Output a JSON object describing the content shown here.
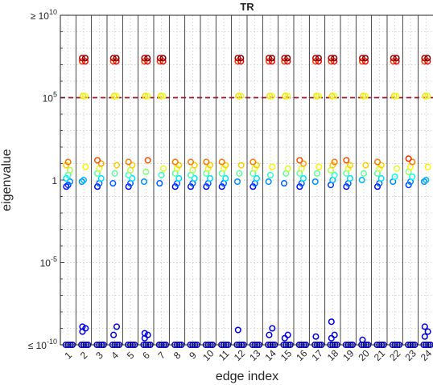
{
  "chart_data": {
    "type": "scatter",
    "title": "TR",
    "xlabel": "edge index",
    "ylabel": "eigenvalue",
    "y_scale": "log10",
    "ylim_log10": [
      -10,
      10
    ],
    "xlim": [
      0.5,
      24.5
    ],
    "grid": "dotted",
    "categories": [
      "1",
      "2",
      "3",
      "4",
      "5",
      "6",
      "7",
      "8",
      "9",
      "10",
      "11",
      "12",
      "13",
      "14",
      "15",
      "16",
      "17",
      "18",
      "19",
      "20",
      "21",
      "22",
      "23",
      "24"
    ],
    "y_ticks": [
      {
        "exp": 10,
        "prefix": "≥ 10",
        "sup": "10"
      },
      {
        "exp": 5,
        "prefix": "10",
        "sup": "5"
      },
      {
        "exp": 0,
        "prefix": "1",
        "sup": ""
      },
      {
        "exp": -5,
        "prefix": "10",
        "sup": "-5"
      },
      {
        "exp": -10,
        "prefix": "≤ 10",
        "sup": "-10"
      }
    ],
    "threshold_line": {
      "log10_value": 5,
      "color": "#a2142f",
      "style": "dashed"
    },
    "colormap": "jet",
    "high_group_log10": [
      5.1,
      7.2,
      7.4
    ],
    "high_group_edges": [
      2,
      4,
      6,
      7,
      12,
      14,
      15,
      17,
      18,
      20,
      22,
      24
    ],
    "edges": [
      {
        "edge": 1,
        "mid_log10": [
          -0.4,
          -0.3,
          -0.1,
          0.1,
          0.3,
          0.6,
          0.9,
          1.1
        ]
      },
      {
        "edge": 2,
        "mid_log10": [
          -0.1,
          0.0,
          0.8
        ],
        "low_log10": [
          -9.2,
          -9.0,
          -8.9
        ]
      },
      {
        "edge": 3,
        "mid_log10": [
          -0.4,
          -0.2,
          0.1,
          0.4,
          0.7,
          1.0,
          1.2
        ]
      },
      {
        "edge": 4,
        "mid_log10": [
          -0.2,
          0.4,
          0.9
        ],
        "low_log10": [
          -9.4,
          -8.9
        ]
      },
      {
        "edge": 5,
        "mid_log10": [
          -0.4,
          -0.2,
          0.1,
          0.3,
          0.6,
          0.9,
          1.1
        ]
      },
      {
        "edge": 6,
        "mid_log10": [
          -0.1,
          0.5,
          1.2
        ],
        "low_log10": [
          -9.6,
          -9.4,
          -9.3
        ]
      },
      {
        "edge": 7,
        "mid_log10": [
          -0.2,
          0.3,
          0.7
        ]
      },
      {
        "edge": 8,
        "mid_log10": [
          -0.4,
          -0.2,
          0.1,
          0.4,
          0.7,
          0.9,
          1.1
        ]
      },
      {
        "edge": 9,
        "mid_log10": [
          -0.4,
          -0.2,
          0.1,
          0.3,
          0.6,
          0.9,
          1.1
        ]
      },
      {
        "edge": 10,
        "mid_log10": [
          -0.4,
          -0.2,
          0.1,
          0.4,
          0.7,
          0.9,
          1.1
        ]
      },
      {
        "edge": 11,
        "mid_log10": [
          -0.4,
          -0.2,
          0.1,
          0.4,
          0.7,
          0.9,
          1.1
        ]
      },
      {
        "edge": 12,
        "mid_log10": [
          -0.1,
          0.4,
          0.9
        ],
        "low_log10": [
          -9.1
        ]
      },
      {
        "edge": 13,
        "mid_log10": [
          -0.4,
          -0.2,
          0.1,
          0.4,
          0.7,
          0.9,
          1.1
        ]
      },
      {
        "edge": 14,
        "mid_log10": [
          -0.1,
          0.3,
          0.8
        ],
        "low_log10": [
          -9.4,
          -9.0
        ]
      },
      {
        "edge": 15,
        "mid_log10": [
          -0.2,
          0.4,
          0.7
        ],
        "low_log10": [
          -9.6,
          -9.4
        ]
      },
      {
        "edge": 16,
        "mid_log10": [
          -0.4,
          -0.2,
          0.1,
          0.4,
          0.7,
          1.0,
          1.2
        ]
      },
      {
        "edge": 17,
        "mid_log10": [
          -0.1,
          0.4,
          0.8
        ],
        "low_log10": [
          -9.5
        ]
      },
      {
        "edge": 18,
        "mid_log10": [
          -0.3,
          0.0,
          0.3,
          0.6,
          0.9,
          1.1
        ],
        "low_log10": [
          -9.6,
          -9.4,
          -8.6
        ]
      },
      {
        "edge": 19,
        "mid_log10": [
          -0.4,
          -0.2,
          0.1,
          0.4,
          0.7,
          0.9,
          1.2
        ]
      },
      {
        "edge": 20,
        "mid_log10": [
          0.0,
          0.4,
          0.9
        ],
        "low_log10": [
          -9.7
        ]
      },
      {
        "edge": 21,
        "mid_log10": [
          -0.4,
          -0.2,
          0.1,
          0.4,
          0.7,
          0.9,
          1.1
        ]
      },
      {
        "edge": 22,
        "mid_log10": [
          -0.1,
          0.2,
          0.7
        ]
      },
      {
        "edge": 23,
        "mid_log10": [
          -0.3,
          -0.1,
          0.2,
          0.5,
          0.8,
          1.1,
          1.3
        ]
      },
      {
        "edge": 24,
        "mid_log10": [
          -0.1,
          0.0,
          0.8
        ],
        "low_log10": [
          -9.5,
          -9.2,
          -8.9
        ]
      }
    ]
  }
}
